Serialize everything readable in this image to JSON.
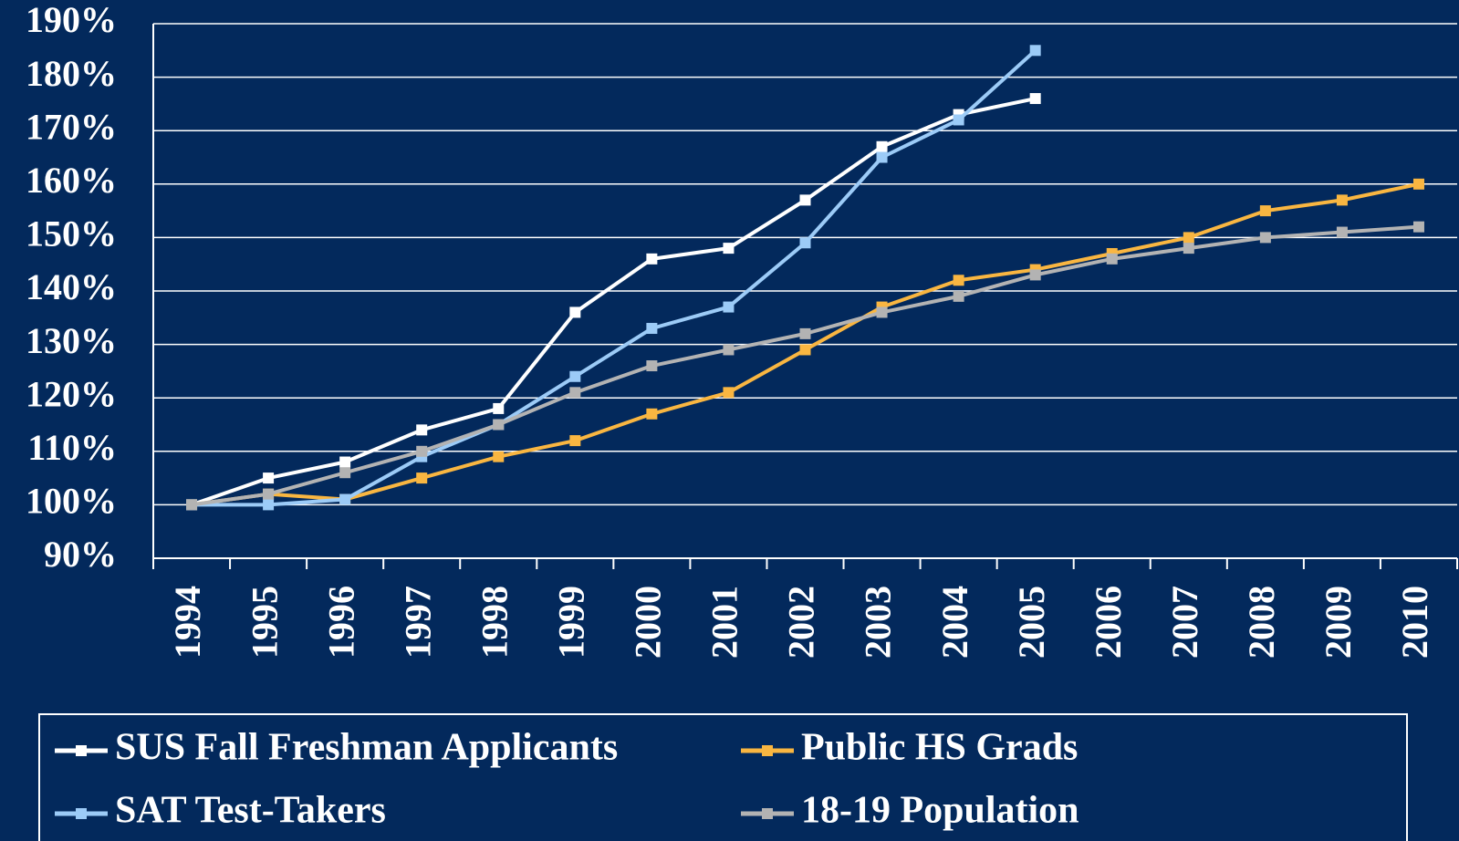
{
  "chart_data": {
    "type": "line",
    "categories": [
      "1994",
      "1995",
      "1996",
      "1997",
      "1998",
      "1999",
      "2000",
      "2001",
      "2002",
      "2003",
      "2004",
      "2005",
      "2006",
      "2007",
      "2008",
      "2009",
      "2010"
    ],
    "series": [
      {
        "name": "SUS Fall Freshman Applicants",
        "color": "#ffffff",
        "values": [
          100,
          105,
          108,
          114,
          118,
          136,
          146,
          148,
          157,
          167,
          173,
          176,
          null,
          null,
          null,
          null,
          null
        ]
      },
      {
        "name": "Public HS Grads",
        "color": "#f9b641",
        "values": [
          100,
          102,
          101,
          105,
          109,
          112,
          117,
          121,
          129,
          137,
          142,
          144,
          147,
          150,
          155,
          157,
          160
        ]
      },
      {
        "name": "SAT Test-Takers",
        "color": "#9ccbf7",
        "values": [
          100,
          100,
          101,
          109,
          115,
          124,
          133,
          137,
          149,
          165,
          172,
          185,
          null,
          null,
          null,
          null,
          null
        ]
      },
      {
        "name": "18-19 Population",
        "color": "#b3b3b3",
        "values": [
          100,
          102,
          106,
          110,
          115,
          121,
          126,
          129,
          132,
          136,
          139,
          143,
          146,
          148,
          150,
          151,
          152
        ]
      }
    ],
    "ylim": [
      90,
      190
    ],
    "yticks": [
      {
        "value": 90,
        "label": "90%"
      },
      {
        "value": 100,
        "label": "100%"
      },
      {
        "value": 110,
        "label": "110%"
      },
      {
        "value": 120,
        "label": "120%"
      },
      {
        "value": 130,
        "label": "130%"
      },
      {
        "value": 140,
        "label": "140%"
      },
      {
        "value": 150,
        "label": "150%"
      },
      {
        "value": 160,
        "label": "160%"
      },
      {
        "value": 170,
        "label": "170%"
      },
      {
        "value": 180,
        "label": "180%"
      },
      {
        "value": 190,
        "label": "190%"
      }
    ],
    "grid": true
  }
}
